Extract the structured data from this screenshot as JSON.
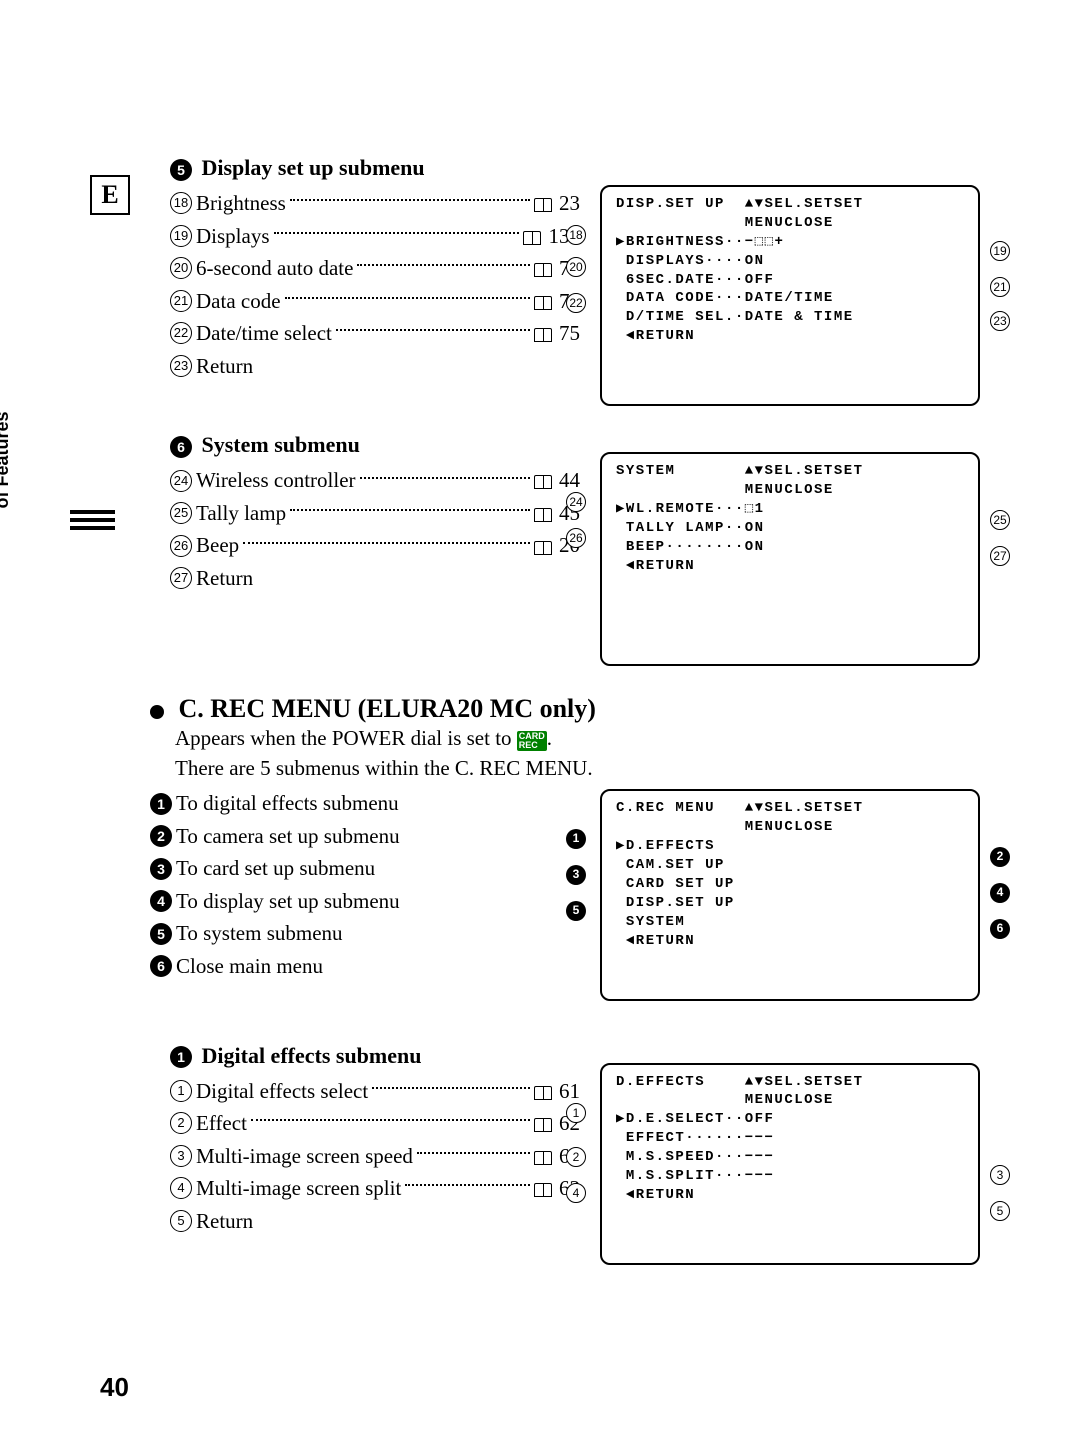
{
  "e_label": "E",
  "sec5": {
    "num": "5",
    "title": "Display set up submenu",
    "items": [
      {
        "n": "18",
        "label": "Brightness",
        "ref": "23"
      },
      {
        "n": "19",
        "label": "Displays",
        "ref": "137"
      },
      {
        "n": "20",
        "label": "6-second auto date",
        "ref": "77"
      },
      {
        "n": "21",
        "label": "Data code",
        "ref": "76"
      },
      {
        "n": "22",
        "label": "Date/time select",
        "ref": "75"
      },
      {
        "n": "23",
        "label": "Return",
        "ref": null
      }
    ],
    "screen": {
      "title": "DISP.SET UP  ▲▼SEL.SETSET",
      "sub": "             MENUCLOSE",
      "lines": [
        "▶BRIGHTNESS··−⬚⬚+",
        " DISPLAYS····ON",
        " 6SEC.DATE···OFF",
        " DATA CODE···DATE/TIME",
        " D/TIME SEL.·DATE & TIME",
        " ◄RETURN"
      ],
      "left_callouts": [
        "18",
        "20",
        "22"
      ],
      "right_callouts": [
        "19",
        "21",
        "23"
      ]
    }
  },
  "sec6": {
    "num": "6",
    "title": "System submenu",
    "items": [
      {
        "n": "24",
        "label": "Wireless controller",
        "ref": "44"
      },
      {
        "n": "25",
        "label": "Tally lamp",
        "ref": "45"
      },
      {
        "n": "26",
        "label": "Beep",
        "ref": "20"
      },
      {
        "n": "27",
        "label": "Return",
        "ref": null
      }
    ],
    "screen": {
      "title": "SYSTEM       ▲▼SEL.SETSET",
      "sub": "             MENUCLOSE",
      "lines": [
        "▶WL.REMOTE···⬚1",
        " TALLY LAMP··ON",
        " BEEP········ON",
        " ◄RETURN"
      ],
      "left_callouts": [
        "24",
        "26"
      ],
      "right_callouts": [
        "25",
        "27"
      ]
    }
  },
  "crec": {
    "heading": "C. REC MENU (ELURA20 MC only)",
    "intro1": "Appears when the POWER dial is set to ",
    "card": "CARD REC",
    "intro2": ".",
    "intro3": "There are 5 submenus within the C. REC MENU.",
    "items": [
      {
        "n": "1",
        "label": "To digital effects submenu"
      },
      {
        "n": "2",
        "label": "To camera set up submenu"
      },
      {
        "n": "3",
        "label": "To card set up submenu"
      },
      {
        "n": "4",
        "label": "To display set up submenu"
      },
      {
        "n": "5",
        "label": "To system submenu"
      },
      {
        "n": "6",
        "label": "Close main menu"
      }
    ],
    "screen": {
      "title": "C.REC MENU   ▲▼SEL.SETSET",
      "sub": "             MENUCLOSE",
      "lines": [
        "▶D.EFFECTS",
        " CAM.SET UP",
        " CARD SET UP",
        " DISP.SET UP",
        " SYSTEM",
        " ◄RETURN"
      ],
      "left_callouts": [
        "1",
        "3",
        "5"
      ],
      "right_callouts": [
        "2",
        "4",
        "6"
      ]
    }
  },
  "deff": {
    "num": "1",
    "title": "Digital effects submenu",
    "items": [
      {
        "n": "1",
        "label": "Digital effects select",
        "ref": "61"
      },
      {
        "n": "2",
        "label": "Effect",
        "ref": "62"
      },
      {
        "n": "3",
        "label": "Multi-image screen speed",
        "ref": "63"
      },
      {
        "n": "4",
        "label": "Multi-image screen split",
        "ref": "63"
      },
      {
        "n": "5",
        "label": "Return",
        "ref": null
      }
    ],
    "screen": {
      "title": "D.EFFECTS    ▲▼SEL.SETSET",
      "sub": "             MENUCLOSE",
      "lines": [
        "▶D.E.SELECT··OFF",
        "",
        " EFFECT······−−−",
        " M.S.SPEED···−−−",
        " M.S.SPLIT···−−−",
        " ◄RETURN"
      ],
      "left_callouts": [
        "1",
        "2",
        "4"
      ],
      "right_callouts": [
        "3",
        "5"
      ]
    }
  },
  "sidebar": "Using the Full Range of Features",
  "page_num": "40"
}
